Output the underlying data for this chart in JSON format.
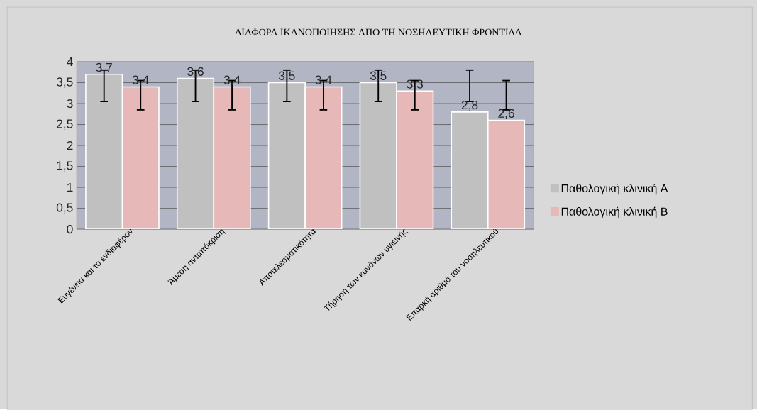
{
  "chart_data": {
    "type": "bar",
    "title": "ΔΙΑΦΟΡΑ ΙΚΑΝΟΠΟΙΗΣΗΣ ΑΠΟ ΤΗ ΝΟΣΗΛΕΥΤΙΚΗ ΦΡΟΝΤΙΔΑ",
    "categories": [
      "Ευγένεια και το ενδιαφέρον",
      "Άμεση ανταπόκριση",
      "Αποτελεσματικότητα",
      "Τήρηση των κανόνων υγιεινής",
      "Επαρκή αριθμό  του νοσηλευτικού"
    ],
    "series": [
      {
        "name": "Παθολογική κλινική Α",
        "color": "#c0c0c0",
        "values": [
          3.7,
          3.6,
          3.5,
          3.5,
          2.8
        ],
        "value_labels": [
          "3,7",
          "3,6",
          "3,5",
          "3,5",
          "2,8"
        ],
        "errors": [
          [
            3.05,
            3.8
          ],
          [
            3.05,
            3.8
          ],
          [
            3.05,
            3.8
          ],
          [
            3.05,
            3.8
          ],
          [
            3.05,
            3.8
          ]
        ]
      },
      {
        "name": "Παθολογική κλινική Β",
        "color": "#e6b8b7",
        "values": [
          3.4,
          3.4,
          3.4,
          3.3,
          2.6
        ],
        "value_labels": [
          "3,4",
          "3,4",
          "3,4",
          "3,3",
          "2,6"
        ],
        "errors": [
          [
            2.85,
            3.55
          ],
          [
            2.85,
            3.55
          ],
          [
            2.85,
            3.55
          ],
          [
            2.85,
            3.55
          ],
          [
            2.85,
            3.55
          ]
        ]
      }
    ],
    "ylim": [
      0,
      4
    ],
    "yticks": [
      0,
      {
        "value": 0.5,
        "label": "0,5"
      },
      1,
      {
        "value": 1.5,
        "label": "1,5"
      },
      2,
      {
        "value": 2.5,
        "label": "2,5"
      },
      3,
      {
        "value": 3.5,
        "label": "3,5"
      },
      4
    ],
    "grid": "y",
    "legend": "right"
  }
}
